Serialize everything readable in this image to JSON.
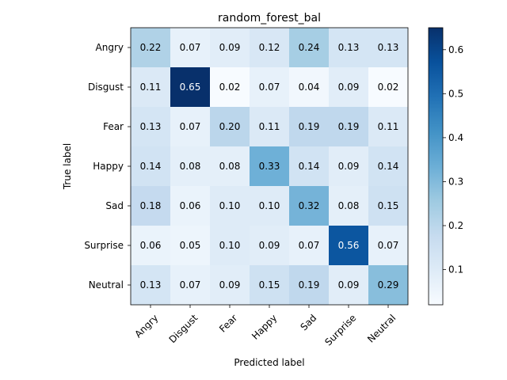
{
  "chart_data": {
    "type": "heatmap",
    "title": "random_forest_bal",
    "xlabel": "Predicted label",
    "ylabel": "True label",
    "x_categories": [
      "Angry",
      "Disgust",
      "Fear",
      "Happy",
      "Sad",
      "Surprise",
      "Neutral"
    ],
    "y_categories": [
      "Angry",
      "Disgust",
      "Fear",
      "Happy",
      "Sad",
      "Surprise",
      "Neutral"
    ],
    "values": [
      [
        0.22,
        0.07,
        0.09,
        0.12,
        0.24,
        0.13,
        0.13
      ],
      [
        0.11,
        0.65,
        0.02,
        0.07,
        0.04,
        0.09,
        0.02
      ],
      [
        0.13,
        0.07,
        0.2,
        0.11,
        0.19,
        0.19,
        0.11
      ],
      [
        0.14,
        0.08,
        0.08,
        0.33,
        0.14,
        0.09,
        0.14
      ],
      [
        0.18,
        0.06,
        0.1,
        0.1,
        0.32,
        0.08,
        0.15
      ],
      [
        0.06,
        0.05,
        0.1,
        0.09,
        0.07,
        0.56,
        0.07
      ],
      [
        0.13,
        0.07,
        0.09,
        0.15,
        0.19,
        0.09,
        0.29
      ]
    ],
    "colormap": "Blues",
    "vmin": 0.02,
    "vmax": 0.65,
    "colorbar_ticks": [
      "0.1",
      "0.2",
      "0.3",
      "0.4",
      "0.5",
      "0.6"
    ],
    "colors": {
      "low": "#f7fbff",
      "high": "#08306b",
      "text_dark": "#000000",
      "text_light": "#ffffff"
    }
  }
}
